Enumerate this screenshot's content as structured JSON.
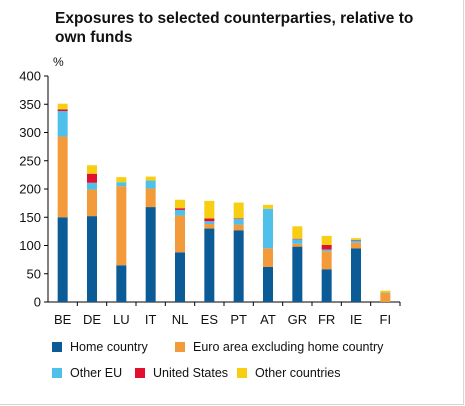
{
  "chart_data": {
    "type": "bar",
    "stacked": true,
    "title": "Exposures to selected counterparties, relative to own funds",
    "ylabel": "%",
    "xlabel": "",
    "ylim": [
      0,
      400
    ],
    "yticks": [
      0,
      50,
      100,
      150,
      200,
      250,
      300,
      350,
      400
    ],
    "grid": false,
    "legend_position": "bottom",
    "categories": [
      "BE",
      "DE",
      "LU",
      "IT",
      "NL",
      "ES",
      "PT",
      "AT",
      "GR",
      "FR",
      "IE",
      "FI"
    ],
    "series": [
      {
        "name": "Home country",
        "color": "#0b5c96",
        "values": [
          150,
          152,
          65,
          168,
          88,
          130,
          127,
          62,
          98,
          58,
          95,
          0
        ]
      },
      {
        "name": "Euro area excluding home country",
        "color": "#f39a3b",
        "values": [
          143,
          47,
          140,
          33,
          65,
          8,
          10,
          33,
          5,
          32,
          10,
          16
        ]
      },
      {
        "name": "Other EU",
        "color": "#4fc0ea",
        "values": [
          45,
          12,
          7,
          14,
          10,
          5,
          10,
          70,
          8,
          3,
          4,
          1
        ]
      },
      {
        "name": "United States",
        "color": "#e30f2e",
        "values": [
          3,
          16,
          0,
          0,
          3,
          5,
          1,
          0,
          1,
          8,
          1,
          0
        ]
      },
      {
        "name": "Other countries",
        "color": "#f8ce13",
        "values": [
          10,
          15,
          9,
          7,
          15,
          31,
          28,
          7,
          22,
          16,
          3,
          3
        ]
      }
    ]
  }
}
